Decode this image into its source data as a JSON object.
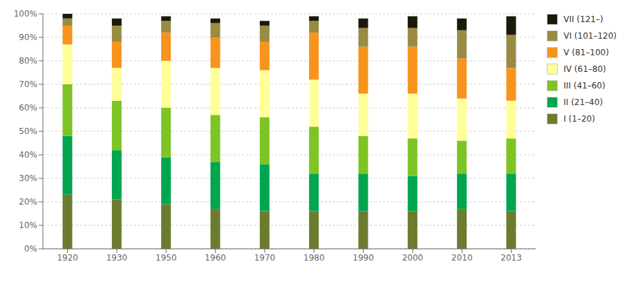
{
  "chart_data": {
    "type": "bar",
    "stacked": true,
    "grid": true,
    "legend": "right",
    "categories": [
      "1920",
      "1930",
      "1950",
      "1960",
      "1970",
      "1980",
      "1990",
      "2000",
      "2010",
      "2013"
    ],
    "series": [
      {
        "name": "I (1–20)",
        "color": "#6b7c2e",
        "values": [
          0.23,
          0.21,
          0.19,
          0.17,
          0.16,
          0.16,
          0.16,
          0.16,
          0.17,
          0.16
        ]
      },
      {
        "name": "II (21–40)",
        "color": "#00a550",
        "values": [
          0.25,
          0.21,
          0.2,
          0.2,
          0.2,
          0.16,
          0.16,
          0.15,
          0.15,
          0.16
        ]
      },
      {
        "name": "III (41–60)",
        "color": "#7dc424",
        "values": [
          0.22,
          0.21,
          0.21,
          0.2,
          0.2,
          0.2,
          0.16,
          0.16,
          0.14,
          0.15
        ]
      },
      {
        "name": "IV (61–80)",
        "color": "#ffff99",
        "values": [
          0.17,
          0.14,
          0.2,
          0.2,
          0.2,
          0.2,
          0.18,
          0.19,
          0.18,
          0.16
        ]
      },
      {
        "name": "V (81–100)",
        "color": "#f7941d",
        "values": [
          0.08,
          0.11,
          0.12,
          0.13,
          0.12,
          0.2,
          0.2,
          0.2,
          0.17,
          0.14
        ]
      },
      {
        "name": "VI (101–120)",
        "color": "#998b42",
        "values": [
          0.03,
          0.07,
          0.05,
          0.06,
          0.07,
          0.05,
          0.08,
          0.08,
          0.12,
          0.14
        ]
      },
      {
        "name": "VII (121–)",
        "color": "#1a1a0a",
        "values": [
          0.02,
          0.03,
          0.02,
          0.02,
          0.02,
          0.02,
          0.04,
          0.05,
          0.05,
          0.08
        ]
      }
    ],
    "ylim": [
      0,
      1.0
    ],
    "yticks": [
      {
        "value": 0.0,
        "label": "0%"
      },
      {
        "value": 0.1,
        "label": "10%"
      },
      {
        "value": 0.2,
        "label": "20%"
      },
      {
        "value": 0.3,
        "label": "30%"
      },
      {
        "value": 0.4,
        "label": "40%"
      },
      {
        "value": 0.5,
        "label": "50%"
      },
      {
        "value": 0.6,
        "label": "60%"
      },
      {
        "value": 0.7,
        "label": "70%"
      },
      {
        "value": 0.8,
        "label": "80%"
      },
      {
        "value": 0.9,
        "label": "90%"
      },
      {
        "value": 1.0,
        "label": "100%"
      }
    ]
  }
}
